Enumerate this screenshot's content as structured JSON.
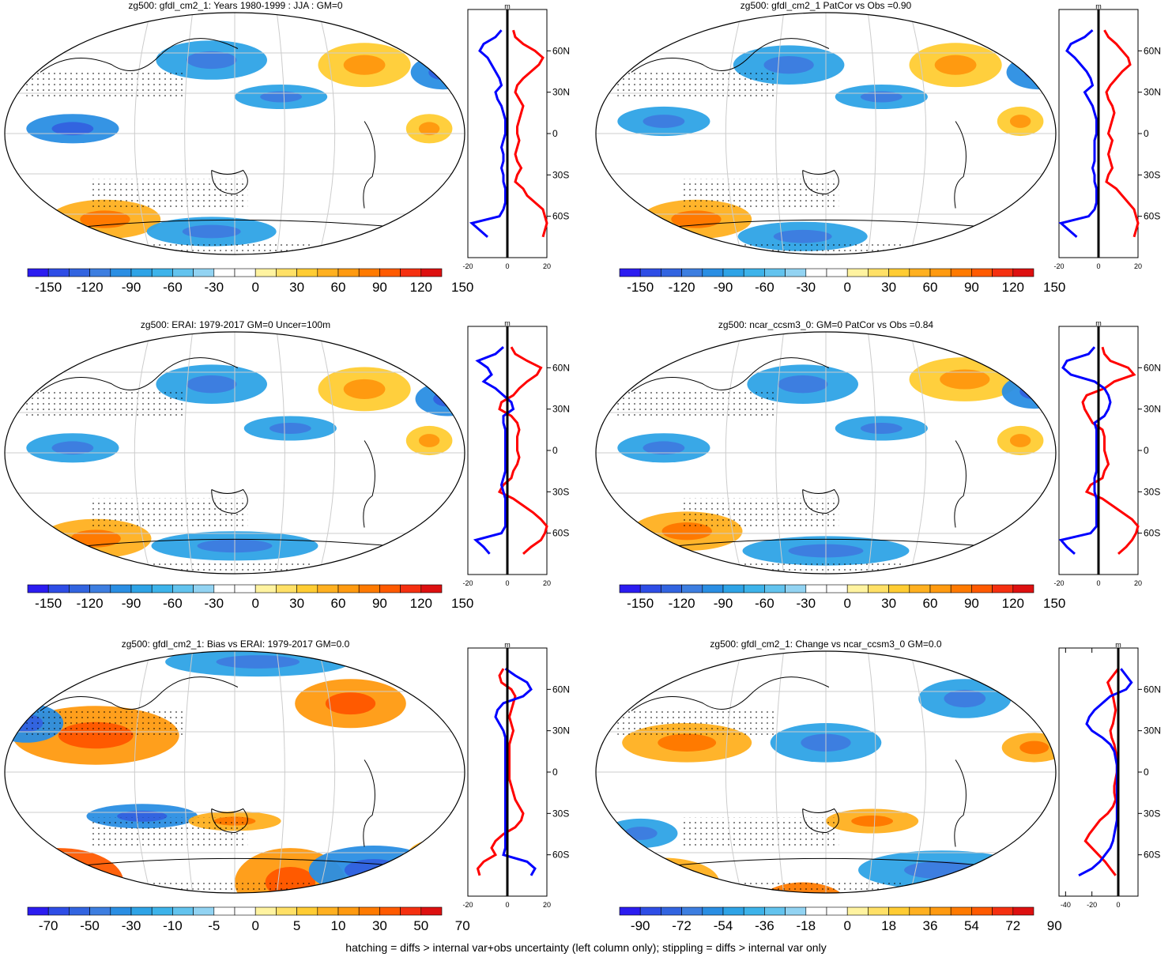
{
  "footer": "hatching = diffs > internal var+obs uncertainty (left column only); stippling = diffs > internal var only",
  "colors": {
    "neg": [
      "#2b1cf0",
      "#2e4de6",
      "#3264e0",
      "#3d7ee0",
      "#2a8ee3",
      "#2ea3e6",
      "#3db3ea",
      "#62c3ee",
      "#92d3f2"
    ],
    "pos": [
      "#fff3a0",
      "#ffe066",
      "#ffcc33",
      "#ffb020",
      "#ff9a10",
      "#ff7a00",
      "#ff5a00",
      "#f53010",
      "#dd1010"
    ],
    "profile_pos": "#ff0000",
    "profile_neg": "#0000ff",
    "grid": "#cccccc"
  },
  "panels": [
    {
      "title": "zg500: gfdl_cm2_1: Years 1980-1999 : JJA : GM=0",
      "colorbar_labels": [
        "-150",
        "-120",
        "-90",
        "-60",
        "-30",
        "0",
        "30",
        "60",
        "90",
        "120",
        "150"
      ],
      "chart_data": {
        "type": "heatmap",
        "profile": {
          "x_ticks": [
            "-20",
            "0",
            "20"
          ],
          "x_unit": "m",
          "lat_ticks": [
            "60N",
            "30N",
            "0",
            "30S",
            "60S"
          ],
          "lat": [
            75,
            70,
            65,
            60,
            55,
            50,
            45,
            40,
            35,
            30,
            25,
            20,
            15,
            10,
            5,
            0,
            -5,
            -10,
            -15,
            -20,
            -25,
            -30,
            -35,
            -40,
            -45,
            -50,
            -55,
            -60,
            -65,
            -70,
            -75
          ],
          "pos": [
            3,
            4,
            8,
            14,
            18,
            16,
            12,
            8,
            5,
            4,
            6,
            8,
            7,
            6,
            5,
            5,
            6,
            5,
            4,
            5,
            7,
            5,
            4,
            8,
            10,
            14,
            18,
            19,
            20,
            19,
            18
          ],
          "neg": [
            -3,
            -6,
            -12,
            -14,
            -10,
            -8,
            -6,
            -4,
            -3,
            -6,
            -5,
            -3,
            -2,
            -1,
            -1,
            -1,
            -2,
            -3,
            -2,
            -2,
            -3,
            -2,
            -2,
            -1,
            -1,
            -1,
            -2,
            -4,
            -18,
            -14,
            -10
          ]
        }
      }
    },
    {
      "title": "zg500: gfdl_cm2_1 PatCor vs Obs =0.90",
      "colorbar_labels": [
        "-150",
        "-120",
        "-90",
        "-60",
        "-30",
        "0",
        "30",
        "60",
        "90",
        "120",
        "150"
      ],
      "chart_data": {
        "type": "heatmap",
        "profile": {
          "x_ticks": [
            "-20",
            "0",
            "20"
          ],
          "x_unit": "m",
          "lat_ticks": [
            "60N",
            "30N",
            "0",
            "30S",
            "60S"
          ],
          "lat": [
            75,
            70,
            65,
            60,
            55,
            50,
            45,
            40,
            35,
            30,
            25,
            20,
            15,
            10,
            5,
            0,
            -5,
            -10,
            -15,
            -20,
            -25,
            -30,
            -35,
            -40,
            -45,
            -50,
            -55,
            -60,
            -65,
            -70,
            -75
          ],
          "pos": [
            3,
            5,
            9,
            12,
            15,
            16,
            12,
            9,
            6,
            4,
            5,
            7,
            8,
            7,
            6,
            5,
            7,
            6,
            5,
            6,
            7,
            5,
            4,
            9,
            12,
            15,
            18,
            19,
            20,
            19,
            18
          ],
          "neg": [
            -3,
            -7,
            -14,
            -16,
            -12,
            -9,
            -6,
            -4,
            -3,
            -7,
            -5,
            -3,
            -2,
            -1,
            -1,
            -1,
            -2,
            -2,
            -2,
            -2,
            -3,
            -2,
            -2,
            -1,
            -1,
            -1,
            -2,
            -5,
            -19,
            -15,
            -11
          ]
        }
      }
    },
    {
      "title": "zg500: ERAI: 1979-2017 GM=0 Uncer=100m",
      "colorbar_labels": [
        "-150",
        "-120",
        "-90",
        "-60",
        "-30",
        "0",
        "30",
        "60",
        "90",
        "120",
        "150"
      ],
      "chart_data": {
        "type": "heatmap",
        "profile": {
          "x_ticks": [
            "-20",
            "0",
            "20"
          ],
          "x_unit": "m",
          "lat_ticks": [
            "60N",
            "30N",
            "0",
            "30S",
            "60S"
          ],
          "lat": [
            75,
            70,
            65,
            60,
            55,
            50,
            45,
            40,
            35,
            30,
            25,
            20,
            15,
            10,
            5,
            0,
            -5,
            -10,
            -15,
            -20,
            -25,
            -30,
            -35,
            -40,
            -45,
            -50,
            -55,
            -60,
            -65,
            -70,
            -75
          ],
          "pos": [
            2,
            4,
            10,
            17,
            15,
            10,
            6,
            3,
            -3,
            -4,
            2,
            5,
            6,
            5,
            5,
            5,
            6,
            5,
            3,
            2,
            -2,
            -4,
            3,
            8,
            13,
            17,
            20,
            19,
            17,
            12,
            8
          ],
          "neg": [
            -2,
            -6,
            -15,
            -10,
            -8,
            -12,
            -6,
            -2,
            2,
            3,
            -2,
            -2,
            -1,
            -1,
            -1,
            -1,
            -1,
            -1,
            -1,
            -2,
            -3,
            -2,
            -1,
            -1,
            -1,
            -1,
            -1,
            -3,
            -16,
            -12,
            -9
          ]
        }
      }
    },
    {
      "title": "zg500: ncar_ccsm3_0: GM=0 PatCor vs Obs =0.84",
      "colorbar_labels": [
        "-150",
        "-120",
        "-90",
        "-60",
        "-30",
        "0",
        "30",
        "60",
        "90",
        "120",
        "150"
      ],
      "chart_data": {
        "type": "heatmap",
        "profile": {
          "x_ticks": [
            "-20",
            "0",
            "20"
          ],
          "x_unit": "m",
          "lat_ticks": [
            "60N",
            "30N",
            "0",
            "30S",
            "60S"
          ],
          "lat": [
            75,
            70,
            65,
            60,
            55,
            50,
            45,
            40,
            35,
            30,
            25,
            20,
            15,
            10,
            5,
            0,
            -5,
            -10,
            -15,
            -20,
            -25,
            -30,
            -35,
            -40,
            -45,
            -50,
            -55,
            -60,
            -65,
            -70,
            -75
          ],
          "pos": [
            2,
            3,
            6,
            15,
            18,
            8,
            3,
            -6,
            -8,
            -7,
            -5,
            -3,
            2,
            3,
            3,
            3,
            4,
            5,
            3,
            2,
            -4,
            -6,
            2,
            7,
            12,
            17,
            20,
            19,
            17,
            14,
            10
          ],
          "neg": [
            -2,
            -5,
            -16,
            -18,
            -14,
            -2,
            3,
            5,
            6,
            5,
            3,
            -2,
            -1,
            -1,
            -1,
            -1,
            -1,
            -1,
            -1,
            -2,
            -2,
            -2,
            -1,
            -1,
            -1,
            -1,
            -1,
            -4,
            -19,
            -16,
            -12
          ]
        }
      }
    },
    {
      "title": "zg500: gfdl_cm2_1: Bias vs ERAI: 1979-2017 GM=0.0",
      "colorbar_labels": [
        "-70",
        "-50",
        "-30",
        "-10",
        "-5",
        "0",
        "5",
        "10",
        "30",
        "50",
        "70"
      ],
      "chart_data": {
        "type": "heatmap",
        "profile": {
          "x_ticks": [
            "-20",
            "0",
            "20"
          ],
          "x_unit": "m",
          "lat_ticks": [
            "60N",
            "30N",
            "0",
            "30S",
            "60S"
          ],
          "lat": [
            75,
            70,
            65,
            60,
            55,
            50,
            45,
            40,
            35,
            30,
            25,
            20,
            15,
            10,
            5,
            0,
            -5,
            -10,
            -15,
            -20,
            -25,
            -30,
            -35,
            -40,
            -45,
            -50,
            -55,
            -60,
            -65,
            -70,
            -75
          ],
          "pos": [
            -2,
            -4,
            -3,
            2,
            4,
            3,
            2,
            1,
            2,
            3,
            2,
            1,
            1,
            1,
            1,
            1,
            1,
            2,
            3,
            4,
            6,
            8,
            7,
            4,
            -2,
            -6,
            -8,
            -6,
            -12,
            -15,
            -14
          ],
          "neg": [
            -1,
            4,
            10,
            12,
            8,
            -2,
            -5,
            -6,
            -4,
            -2,
            -1,
            -1,
            -1,
            -1,
            -1,
            -1,
            -1,
            -1,
            -1,
            -1,
            -1,
            -1,
            -1,
            -1,
            -1,
            -1,
            -1,
            -2,
            10,
            14,
            12
          ]
        }
      }
    },
    {
      "title": "zg500: gfdl_cm2_1: Change vs ncar_ccsm3_0 GM=0.0",
      "colorbar_labels": [
        "-90",
        "-72",
        "-54",
        "-36",
        "-18",
        "0",
        "18",
        "36",
        "54",
        "72",
        "90"
      ],
      "chart_data": {
        "type": "heatmap",
        "profile": {
          "x_ticks": [
            "-40",
            "-20",
            "0"
          ],
          "x_unit": "m",
          "lat_ticks": [
            "60N",
            "30N",
            "0",
            "30S",
            "60S"
          ],
          "lat": [
            75,
            70,
            65,
            60,
            55,
            50,
            45,
            40,
            35,
            30,
            25,
            20,
            15,
            10,
            5,
            0,
            -5,
            -10,
            -15,
            -20,
            -25,
            -30,
            -35,
            -40,
            -45,
            -50,
            -55,
            -60,
            -65,
            -70,
            -75
          ],
          "pos": [
            0,
            -4,
            -8,
            -6,
            -4,
            -3,
            -2,
            -3,
            -4,
            -6,
            -5,
            -3,
            -2,
            -1,
            -1,
            -1,
            -2,
            -3,
            -3,
            -2,
            -4,
            -8,
            -14,
            -18,
            -22,
            -25,
            -20,
            -15,
            -10,
            -6,
            -2
          ],
          "neg": [
            2,
            6,
            10,
            6,
            -6,
            -12,
            -18,
            -22,
            -24,
            -20,
            -12,
            -6,
            -3,
            -2,
            -1,
            -1,
            -1,
            -1,
            -1,
            -1,
            -1,
            -1,
            -1,
            -2,
            -3,
            -4,
            -6,
            -10,
            -14,
            -20,
            -30
          ]
        }
      }
    }
  ]
}
